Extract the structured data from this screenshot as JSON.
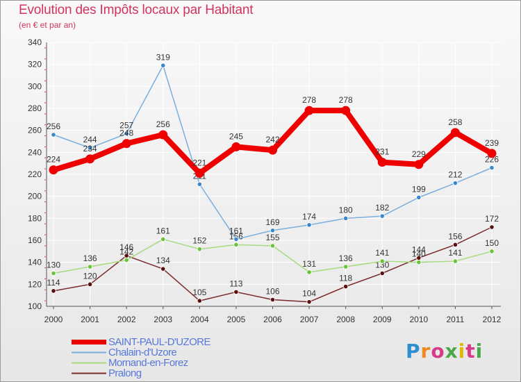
{
  "title": "Evolution des Impôts locaux par Habitant",
  "subtitle": "(en € et par an)",
  "brand": "Proxiti",
  "colors": {
    "background_top": "#f9f9f9",
    "background_bottom": "#e7e7e7",
    "title": "#d0345f",
    "legend_text": "#5878d8",
    "grid": "#ffffff"
  },
  "chart_data": {
    "type": "line",
    "x": [
      "2000",
      "2001",
      "2002",
      "2003",
      "2004",
      "2005",
      "2006",
      "2007",
      "2008",
      "2009",
      "2010",
      "2011",
      "2012"
    ],
    "ylim": [
      100,
      340
    ],
    "yticks": [
      100,
      120,
      140,
      160,
      180,
      200,
      220,
      240,
      260,
      280,
      300,
      320,
      340
    ],
    "grid": true,
    "legend_position": "bottom-left",
    "series": [
      {
        "name": "Pralong",
        "color": "#7a2a2a",
        "point_color": "#5a1010",
        "values": [
          114,
          120,
          146,
          134,
          105,
          113,
          106,
          104,
          118,
          130,
          144,
          156,
          172
        ]
      },
      {
        "name": "Mornand-en-Forez",
        "color": "#a6da7e",
        "point_color": "#6cc23a",
        "values": [
          130,
          136,
          142,
          161,
          152,
          156,
          155,
          131,
          136,
          141,
          140,
          141,
          150
        ]
      },
      {
        "name": "Chalain-d'Uzore",
        "color": "#7aaedc",
        "point_color": "#3a88cc",
        "values": [
          256,
          244,
          257,
          319,
          211,
          161,
          169,
          174,
          180,
          182,
          199,
          212,
          226
        ]
      },
      {
        "name": "SAINT-PAUL-D'UZORE",
        "color": "#ee0000",
        "point_color": "#ee0000",
        "values": [
          224,
          234,
          248,
          256,
          221,
          245,
          242,
          278,
          278,
          231,
          229,
          258,
          239
        ]
      }
    ]
  }
}
